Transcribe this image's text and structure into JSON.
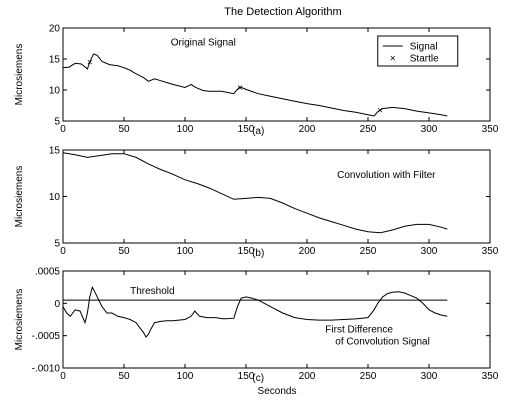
{
  "figure": {
    "title": "The Detection Algorithm",
    "xlabel": "Seconds"
  },
  "chart_data": [
    {
      "type": "line",
      "panel_label": "(a)",
      "ylabel": "Microsiemens",
      "annotation": "Original Signal",
      "xlim": [
        0,
        350
      ],
      "ylim": [
        5,
        20
      ],
      "x_ticks": [
        "0",
        "50",
        "100",
        "150",
        "200",
        "250",
        "300",
        "350"
      ],
      "y_ticks": [
        {
          "value": 5,
          "label": "5"
        },
        {
          "value": 10,
          "label": "10"
        },
        {
          "value": 15,
          "label": "15"
        },
        {
          "value": 20,
          "label": "20"
        }
      ],
      "legend": {
        "position": "top-right",
        "entries": [
          {
            "label": "Signal",
            "marker": "line"
          },
          {
            "label": "Startle",
            "marker": "x"
          }
        ]
      },
      "series": [
        {
          "name": "Signal",
          "x": [
            0,
            5,
            10,
            15,
            20,
            22,
            25,
            28,
            32,
            38,
            45,
            50,
            55,
            58,
            62,
            66,
            70,
            75,
            80,
            90,
            100,
            105,
            108,
            110,
            115,
            120,
            130,
            140,
            142,
            145,
            150,
            160,
            170,
            180,
            190,
            200,
            210,
            220,
            230,
            240,
            250,
            255,
            258,
            262,
            270,
            280,
            290,
            300,
            310,
            315
          ],
          "y": [
            13.6,
            13.7,
            14.3,
            14.2,
            13.4,
            14.5,
            15.8,
            15.6,
            14.6,
            14.1,
            13.9,
            13.6,
            13.2,
            12.8,
            12.4,
            12.0,
            11.4,
            11.8,
            11.5,
            10.9,
            10.4,
            10.9,
            10.5,
            10.3,
            9.9,
            9.8,
            9.8,
            9.4,
            9.9,
            10.5,
            10.1,
            9.4,
            9.0,
            8.6,
            8.2,
            7.8,
            7.5,
            7.1,
            6.7,
            6.4,
            6.0,
            5.8,
            6.5,
            7.0,
            7.2,
            7.0,
            6.6,
            6.3,
            6.0,
            5.8
          ]
        },
        {
          "name": "Startle",
          "x": [
            22,
            145,
            260
          ],
          "y": [
            14.5,
            10.4,
            6.8
          ]
        }
      ]
    },
    {
      "type": "line",
      "panel_label": "(b)",
      "ylabel": "Microsiemens",
      "annotation": "Convolution with Filter",
      "xlim": [
        0,
        350
      ],
      "ylim": [
        5,
        15
      ],
      "x_ticks": [
        "0",
        "50",
        "100",
        "150",
        "200",
        "250",
        "300",
        "350"
      ],
      "y_ticks": [
        {
          "value": 5,
          "label": "5"
        },
        {
          "value": 10,
          "label": "10"
        },
        {
          "value": 15,
          "label": "15"
        }
      ],
      "series": [
        {
          "x": [
            0,
            10,
            20,
            30,
            40,
            50,
            60,
            70,
            80,
            90,
            100,
            110,
            120,
            130,
            140,
            150,
            160,
            170,
            180,
            190,
            200,
            210,
            220,
            230,
            240,
            250,
            260,
            270,
            280,
            290,
            300,
            310,
            315
          ],
          "y": [
            14.7,
            14.5,
            14.2,
            14.4,
            14.6,
            14.6,
            14.2,
            13.5,
            12.9,
            12.4,
            11.8,
            11.4,
            10.9,
            10.3,
            9.7,
            9.8,
            9.9,
            9.8,
            9.3,
            8.7,
            8.2,
            7.7,
            7.3,
            6.9,
            6.5,
            6.2,
            6.1,
            6.4,
            6.8,
            7.0,
            7.0,
            6.7,
            6.5
          ]
        }
      ]
    },
    {
      "type": "line",
      "panel_label": "(c)",
      "ylabel": "Microsiemens",
      "annotation_lines": [
        "First Difference",
        "of Convolution Signal"
      ],
      "threshold_label": "Threshold",
      "threshold_value": 5e-05,
      "xlim": [
        0,
        350
      ],
      "ylim": [
        -0.001,
        0.0005
      ],
      "x_ticks": [
        "0",
        "50",
        "100",
        "150",
        "200",
        "250",
        "300",
        "350"
      ],
      "y_ticks": [
        {
          "value": 0.0005,
          "label": ".0005"
        },
        {
          "value": 0,
          "label": "0"
        },
        {
          "value": -0.0005,
          "label": "-.0005"
        },
        {
          "value": -0.001,
          "label": "-.0010"
        }
      ],
      "series": [
        {
          "x": [
            0,
            3,
            6,
            10,
            14,
            18,
            20,
            22,
            24,
            26,
            28,
            32,
            36,
            40,
            45,
            50,
            55,
            60,
            63,
            66,
            68,
            70,
            72,
            75,
            80,
            85,
            90,
            95,
            100,
            105,
            108,
            112,
            118,
            125,
            132,
            140,
            143,
            146,
            150,
            155,
            160,
            170,
            180,
            190,
            200,
            210,
            220,
            230,
            240,
            250,
            255,
            258,
            262,
            266,
            270,
            275,
            280,
            285,
            290,
            295,
            300,
            305,
            310,
            315
          ],
          "y": [
            -5e-05,
            -0.00015,
            -0.0002,
            -0.0001,
            -0.00012,
            -0.0003,
            -0.00015,
            0.0001,
            0.00025,
            0.00018,
            0.0001,
            -5e-05,
            -0.00015,
            -0.00015,
            -0.0002,
            -0.00022,
            -0.00025,
            -0.0003,
            -0.00038,
            -0.00045,
            -0.00052,
            -0.00048,
            -0.0004,
            -0.0003,
            -0.00028,
            -0.00027,
            -0.00027,
            -0.00026,
            -0.00025,
            -0.0002,
            -0.00012,
            -0.0002,
            -0.00022,
            -0.00022,
            -0.00024,
            -0.00023,
            -5e-05,
            8e-05,
            0.0001,
            8e-05,
            5e-05,
            -5e-05,
            -0.00015,
            -0.00022,
            -0.00025,
            -0.00026,
            -0.00026,
            -0.00025,
            -0.00024,
            -0.00022,
            -0.0001,
            0.0,
            0.0001,
            0.00015,
            0.00017,
            0.00018,
            0.00016,
            0.00012,
            8e-05,
            0.0,
            -0.0001,
            -0.00015,
            -0.00018,
            -0.0002
          ]
        }
      ]
    }
  ]
}
